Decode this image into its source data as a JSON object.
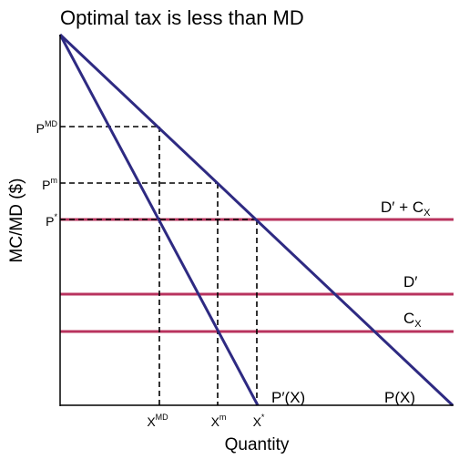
{
  "title": "Optimal tax is less than MD",
  "axes": {
    "y_label": "MC/MD ($)",
    "x_label": "Quantity"
  },
  "price_ticks": {
    "pmd": {
      "base": "P",
      "sup": "MD"
    },
    "pm": {
      "base": "P",
      "sup": "m"
    },
    "pstar": {
      "base": "P",
      "sup": "*"
    }
  },
  "quantity_ticks": {
    "xmd": {
      "base": "X",
      "sup": "MD"
    },
    "xm": {
      "base": "X",
      "sup": "m"
    },
    "xstar": {
      "base": "X",
      "sup": "*"
    }
  },
  "curve_labels": {
    "d_prime_plus_cx": {
      "a": "D′ + C",
      "sub": "X"
    },
    "d_prime": "D′",
    "cx": {
      "a": "C",
      "sub": "X"
    },
    "p_prime_x": "P′(X)",
    "p_x": "P(X)"
  },
  "colors": {
    "demand_lines": "#2e2a82",
    "horizontal_lines": "#b8335e",
    "axes": "#000000",
    "guides": "#000000"
  }
}
